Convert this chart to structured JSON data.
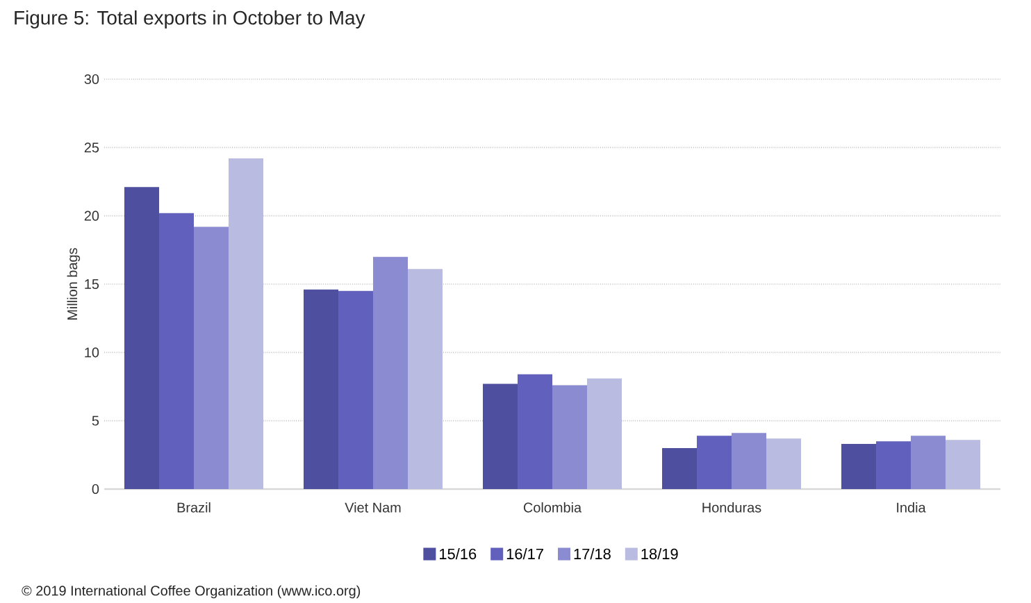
{
  "chart_data": {
    "type": "bar",
    "title": "Figure 5: Total exports in October to May",
    "ylabel": "Million bags",
    "categories": [
      "Brazil",
      "Viet Nam",
      "Colombia",
      "Honduras",
      "India"
    ],
    "series": [
      {
        "name": "15/16",
        "color": "#4e4f9f",
        "values": [
          22.1,
          14.6,
          7.7,
          3.0,
          3.3
        ]
      },
      {
        "name": "16/17",
        "color": "#6161bd",
        "values": [
          20.2,
          14.5,
          8.4,
          3.9,
          3.5
        ]
      },
      {
        "name": "17/18",
        "color": "#8b8bd1",
        "values": [
          19.2,
          17.0,
          7.6,
          4.1,
          3.9
        ]
      },
      {
        "name": "18/19",
        "color": "#babbe0",
        "values": [
          24.2,
          16.1,
          8.1,
          3.7,
          3.6
        ]
      }
    ],
    "ylim": [
      0,
      30
    ],
    "yticks": [
      0,
      5,
      10,
      15,
      20,
      25,
      30
    ],
    "grid": "y",
    "legend": "bottom",
    "annotations": [
      "© 2019 International Coffee Organization (www.ico.org)"
    ]
  }
}
